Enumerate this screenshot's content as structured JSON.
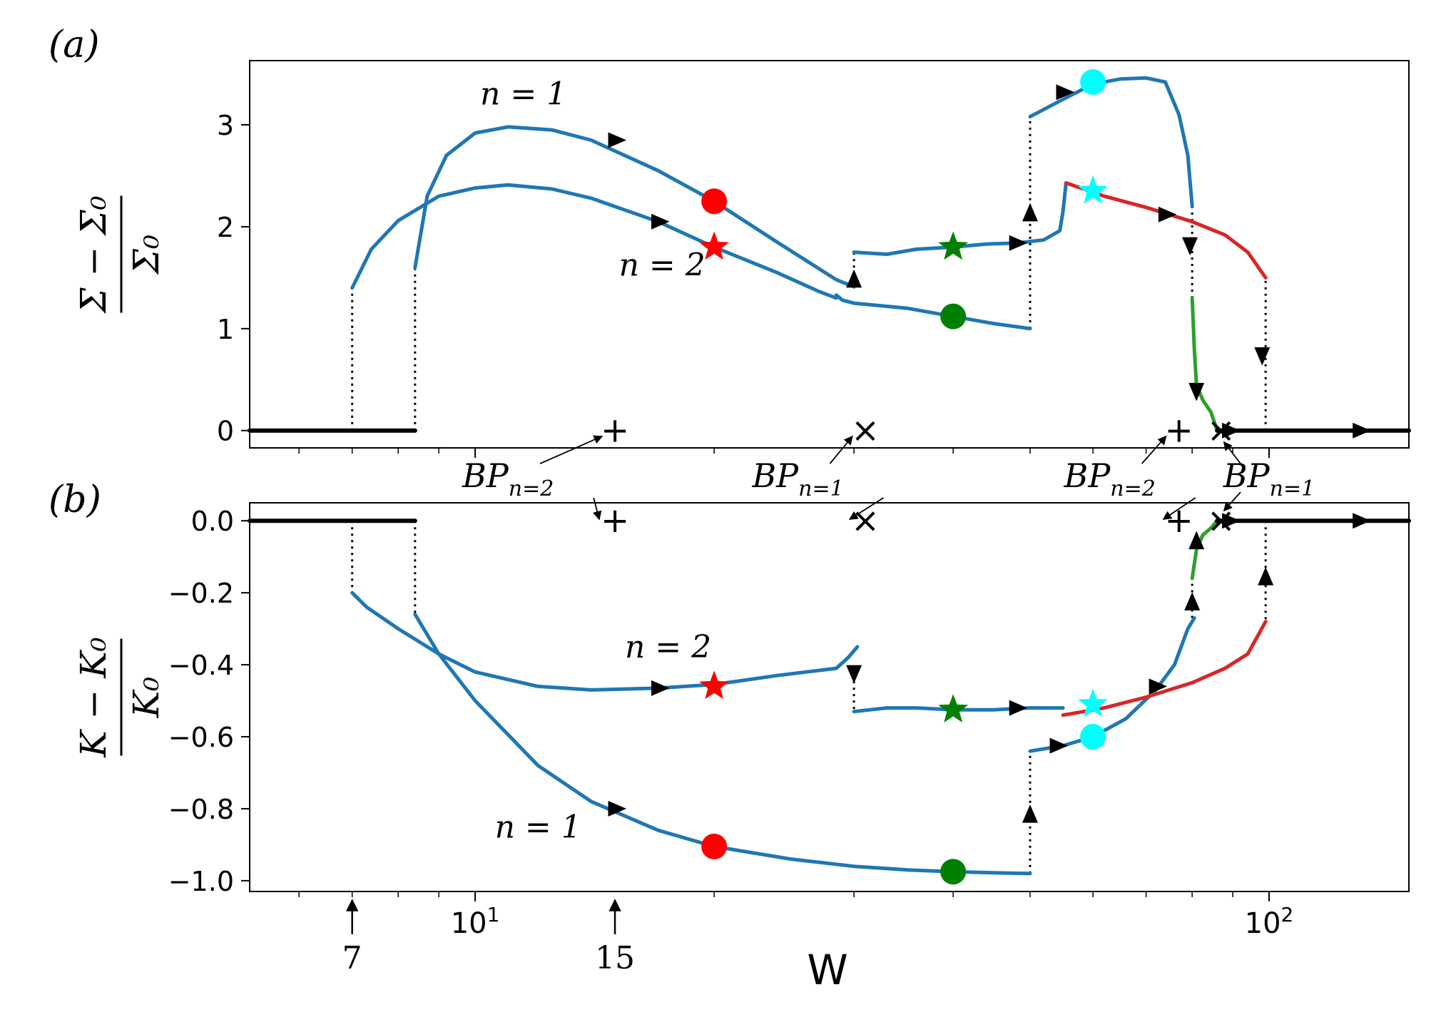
{
  "panel_labels": {
    "a": "(a)",
    "b": "(b)"
  },
  "chart_data": [
    {
      "type": "line",
      "panel": "(a)",
      "xlabel": "W",
      "x_scale": "log",
      "xlim": [
        5.2,
        150
      ],
      "ylim": [
        -0.17,
        3.63
      ],
      "ylabel_num": "Σ − Σ₀",
      "ylabel_den": "Σ₀",
      "yticks": [
        0,
        1,
        2,
        3
      ],
      "series": [
        {
          "name": "n = 1",
          "color": "#1f77b4",
          "x": [
            8.4,
            8.7,
            9.2,
            10,
            11,
            12.5,
            14,
            17,
            20,
            24,
            28.5,
            30
          ],
          "y": [
            1.6,
            2.3,
            2.7,
            2.92,
            2.98,
            2.95,
            2.85,
            2.55,
            2.25,
            1.85,
            1.48,
            1.41
          ]
        },
        {
          "name": "n = 2",
          "color": "#1f77b4",
          "x": [
            7,
            7.4,
            8,
            9,
            10,
            11,
            12.5,
            14,
            17,
            20,
            24,
            27,
            28.5
          ],
          "y": [
            1.4,
            1.78,
            2.06,
            2.3,
            2.38,
            2.41,
            2.37,
            2.28,
            2.05,
            1.8,
            1.55,
            1.37,
            1.3
          ]
        },
        {
          "name": "n = 2",
          "color": "#1f77b4",
          "x": [
            28.5,
            29,
            30,
            35,
            40,
            45,
            48,
            49,
            50
          ],
          "y": [
            1.33,
            1.28,
            1.25,
            1.2,
            1.12,
            1.05,
            1.02,
            1.01,
            1.0
          ]
        },
        {
          "name": "n = 1",
          "color": "#1f77b4",
          "x": [
            30,
            33,
            36,
            40,
            44,
            48,
            52,
            54.5,
            55,
            55.5
          ],
          "y": [
            1.75,
            1.73,
            1.78,
            1.8,
            1.83,
            1.84,
            1.87,
            1.96,
            2.15,
            2.43
          ]
        },
        {
          "name": "n = 2",
          "color": "#1f77b4",
          "x": [
            50,
            55,
            60,
            65,
            70,
            74,
            77,
            79,
            80
          ],
          "y": [
            3.08,
            3.25,
            3.4,
            3.45,
            3.46,
            3.42,
            3.1,
            2.7,
            2.2
          ]
        },
        {
          "name": "n = 1",
          "color": "#d62728",
          "x": [
            55.5,
            62,
            70,
            80,
            88,
            94,
            99
          ],
          "y": [
            2.43,
            2.3,
            2.19,
            2.05,
            1.92,
            1.75,
            1.5
          ]
        },
        {
          "name": "n = 2",
          "color": "#2ca02c",
          "x": [
            80,
            80.5,
            81,
            82.5,
            84.5,
            86
          ],
          "y": [
            1.3,
            0.8,
            0.45,
            0.3,
            0.18,
            0.0
          ]
        },
        {
          "name": "",
          "color": "#000000",
          "x": [
            5.2,
            8.4
          ],
          "y": [
            0,
            0
          ]
        },
        {
          "name": "",
          "color": "#000000",
          "x": [
            86,
            150
          ],
          "y": [
            0,
            0
          ]
        }
      ],
      "markers": [
        {
          "shape": "circle",
          "color": "#ff0000",
          "x": 20,
          "y": 2.25
        },
        {
          "shape": "star",
          "color": "#ff0000",
          "x": 20,
          "y": 1.8
        },
        {
          "shape": "circle",
          "color": "#008000",
          "x": 40,
          "y": 1.12
        },
        {
          "shape": "star",
          "color": "#008000",
          "x": 40,
          "y": 1.8
        },
        {
          "shape": "circle",
          "color": "#00ffff",
          "x": 60,
          "y": 3.42
        },
        {
          "shape": "star",
          "color": "#00ffff",
          "x": 60,
          "y": 2.35
        }
      ],
      "arrows": [
        {
          "x": 15.0,
          "y": 2.85,
          "dir": "right"
        },
        {
          "x": 17.0,
          "y": 2.05,
          "dir": "right"
        },
        {
          "x": 30.0,
          "y": 1.47,
          "dir": "up"
        },
        {
          "x": 50.0,
          "y": 2.12,
          "dir": "up"
        },
        {
          "x": 48.0,
          "y": 1.84,
          "dir": "right"
        },
        {
          "x": 55.0,
          "y": 3.32,
          "dir": "right"
        },
        {
          "x": 74.0,
          "y": 2.12,
          "dir": "right"
        },
        {
          "x": 79.5,
          "y": 1.83,
          "dir": "down"
        },
        {
          "x": 81.0,
          "y": 0.4,
          "dir": "down"
        },
        {
          "x": 98.0,
          "y": 0.75,
          "dir": "down"
        },
        {
          "x": 89.0,
          "y": 0.0,
          "dir": "right"
        },
        {
          "x": 130.0,
          "y": 0.0,
          "dir": "right"
        }
      ],
      "drops": [
        {
          "x": 7.0,
          "y0": 0,
          "y1": 1.4
        },
        {
          "x": 8.4,
          "y0": 0,
          "y1": 1.6
        },
        {
          "x": 30.0,
          "y0": 1.41,
          "y1": 1.75
        },
        {
          "x": 50.0,
          "y0": 1.0,
          "y1": 3.08
        },
        {
          "x": 80.0,
          "y0": 1.3,
          "y1": 2.2
        },
        {
          "x": 99.0,
          "y0": 0,
          "y1": 1.5
        }
      ],
      "bifurcation_points": [
        {
          "symbol": "+",
          "x": 15,
          "y": 0
        },
        {
          "symbol": "×",
          "x": 31,
          "y": 0
        },
        {
          "symbol": "+",
          "x": 77,
          "y": 0
        },
        {
          "symbol": "×",
          "x": 87,
          "y": 0
        }
      ],
      "curve_labels": [
        {
          "text": "n = 1",
          "x": 11.5,
          "y": 3.2
        },
        {
          "text": "n = 2",
          "x": 17.2,
          "y": 1.52
        }
      ]
    },
    {
      "type": "line",
      "panel": "(b)",
      "xlabel": "W",
      "x_scale": "log",
      "xlim": [
        5.2,
        150
      ],
      "ylim": [
        -1.03,
        0.05
      ],
      "ylabel_num": "K − K₀",
      "ylabel_den": "K₀",
      "yticks": [
        0.0,
        -0.2,
        -0.4,
        -0.6,
        -0.8,
        -1.0
      ],
      "ytick_labels": [
        "0.0",
        "−0.2",
        "−0.4",
        "−0.6",
        "−0.8",
        "−1.0"
      ],
      "xticks": [
        10,
        100
      ],
      "xtick_base": "10",
      "xtick_exps": [
        "1",
        "2"
      ],
      "series": [
        {
          "name": "n = 2",
          "color": "#1f77b4",
          "x": [
            7,
            7.3,
            8,
            9,
            10,
            12,
            14,
            17,
            20,
            24,
            28.5,
            29.5,
            30.3
          ],
          "y": [
            -0.2,
            -0.24,
            -0.3,
            -0.37,
            -0.42,
            -0.46,
            -0.47,
            -0.465,
            -0.455,
            -0.43,
            -0.41,
            -0.38,
            -0.35
          ]
        },
        {
          "name": "n = 1",
          "color": "#1f77b4",
          "x": [
            8.4,
            9,
            10,
            12,
            14,
            17,
            20,
            25,
            30,
            35,
            40,
            45,
            50
          ],
          "y": [
            -0.26,
            -0.37,
            -0.5,
            -0.68,
            -0.78,
            -0.86,
            -0.905,
            -0.94,
            -0.96,
            -0.97,
            -0.975,
            -0.978,
            -0.98
          ]
        },
        {
          "name": "n = 2",
          "color": "#1f77b4",
          "x": [
            30,
            33,
            36,
            40,
            45,
            50,
            55
          ],
          "y": [
            -0.53,
            -0.52,
            -0.52,
            -0.525,
            -0.525,
            -0.52,
            -0.52
          ]
        },
        {
          "name": "n = 1",
          "color": "#1f77b4",
          "x": [
            50,
            55,
            60,
            66,
            72,
            76,
            79,
            80.5
          ],
          "y": [
            -0.64,
            -0.625,
            -0.6,
            -0.55,
            -0.47,
            -0.4,
            -0.3,
            -0.27
          ]
        },
        {
          "name": "n = 2",
          "color": "#d62728",
          "x": [
            55,
            62,
            70,
            80,
            88,
            94,
            99
          ],
          "y": [
            -0.54,
            -0.52,
            -0.49,
            -0.45,
            -0.41,
            -0.37,
            -0.28
          ]
        },
        {
          "name": "n = 1",
          "color": "#2ca02c",
          "x": [
            80,
            81,
            82.5,
            84.5,
            86
          ],
          "y": [
            -0.16,
            -0.08,
            -0.04,
            -0.02,
            0.0
          ]
        },
        {
          "name": "",
          "color": "#000000",
          "x": [
            5.2,
            8.4
          ],
          "y": [
            0,
            0
          ]
        },
        {
          "name": "",
          "color": "#000000",
          "x": [
            86,
            150
          ],
          "y": [
            0,
            0
          ]
        }
      ],
      "markers": [
        {
          "shape": "circle",
          "color": "#ff0000",
          "x": 20,
          "y": -0.905
        },
        {
          "shape": "star",
          "color": "#ff0000",
          "x": 20,
          "y": -0.46
        },
        {
          "shape": "circle",
          "color": "#008000",
          "x": 40,
          "y": -0.975
        },
        {
          "shape": "star",
          "color": "#008000",
          "x": 40,
          "y": -0.525
        },
        {
          "shape": "circle",
          "color": "#00ffff",
          "x": 60,
          "y": -0.6
        },
        {
          "shape": "star",
          "color": "#00ffff",
          "x": 60,
          "y": -0.51
        }
      ],
      "arrows": [
        {
          "x": 15.0,
          "y": -0.8,
          "dir": "right"
        },
        {
          "x": 17.0,
          "y": -0.465,
          "dir": "right"
        },
        {
          "x": 30.0,
          "y": -0.42,
          "dir": "down"
        },
        {
          "x": 50.0,
          "y": -0.82,
          "dir": "up"
        },
        {
          "x": 48.0,
          "y": -0.52,
          "dir": "right"
        },
        {
          "x": 54.0,
          "y": -0.625,
          "dir": "right"
        },
        {
          "x": 72.0,
          "y": -0.46,
          "dir": "right"
        },
        {
          "x": 80.0,
          "y": -0.23,
          "dir": "up"
        },
        {
          "x": 81.0,
          "y": -0.06,
          "dir": "up"
        },
        {
          "x": 99.0,
          "y": -0.16,
          "dir": "up"
        },
        {
          "x": 89.0,
          "y": 0.0,
          "dir": "right"
        },
        {
          "x": 130.0,
          "y": 0.0,
          "dir": "right"
        }
      ],
      "drops": [
        {
          "x": 7.0,
          "y0": 0,
          "y1": -0.2
        },
        {
          "x": 8.4,
          "y0": 0,
          "y1": -0.26
        },
        {
          "x": 30.0,
          "y0": -0.41,
          "y1": -0.53
        },
        {
          "x": 50.0,
          "y0": -0.98,
          "y1": -0.64
        },
        {
          "x": 80.0,
          "y0": -0.27,
          "y1": -0.16
        },
        {
          "x": 99.0,
          "y0": 0,
          "y1": -0.28
        }
      ],
      "bifurcation_points": [
        {
          "symbol": "+",
          "x": 15,
          "y": 0
        },
        {
          "symbol": "×",
          "x": 31,
          "y": 0
        },
        {
          "symbol": "+",
          "x": 77,
          "y": 0
        },
        {
          "symbol": "×",
          "x": 87,
          "y": 0
        }
      ],
      "curve_labels": [
        {
          "text": "n = 2",
          "x": 17.5,
          "y": -0.38
        },
        {
          "text": "n = 1",
          "x": 12.0,
          "y": -0.88
        }
      ]
    }
  ],
  "bp_labels": [
    {
      "base": "BP",
      "sub": "n=2",
      "x": 11.0
    },
    {
      "base": "BP",
      "sub": "n=1",
      "x": 25.5
    },
    {
      "base": "BP",
      "sub": "n=2",
      "x": 63.0
    },
    {
      "base": "BP",
      "sub": "n=1",
      "x": 100.0
    }
  ],
  "bottom_arrows": [
    {
      "label": "7",
      "x": 7
    },
    {
      "label": "15",
      "x": 15
    }
  ]
}
